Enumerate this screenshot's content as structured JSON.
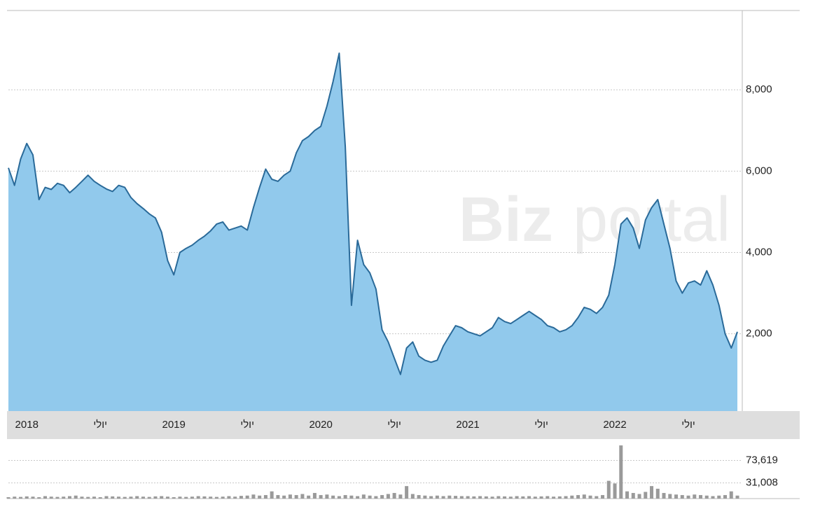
{
  "watermark": {
    "bold": "Biz",
    "light": "portal"
  },
  "chart_data": [
    {
      "type": "area",
      "categories": [
        null,
        null,
        null,
        "2018",
        null,
        null,
        null,
        null,
        null,
        null,
        null,
        null,
        null,
        null,
        null,
        "יולי",
        null,
        null,
        null,
        null,
        null,
        null,
        null,
        null,
        null,
        null,
        null,
        "2019",
        null,
        null,
        null,
        null,
        null,
        null,
        null,
        null,
        null,
        null,
        null,
        "יולי",
        null,
        null,
        null,
        null,
        null,
        null,
        null,
        null,
        null,
        null,
        null,
        "2020",
        null,
        null,
        null,
        null,
        null,
        null,
        null,
        null,
        null,
        null,
        null,
        "יולי",
        null,
        null,
        null,
        null,
        null,
        null,
        null,
        null,
        null,
        null,
        null,
        "2021",
        null,
        null,
        null,
        null,
        null,
        null,
        null,
        null,
        null,
        null,
        null,
        "יולי",
        null,
        null,
        null,
        null,
        null,
        null,
        null,
        null,
        null,
        null,
        null,
        "2022",
        null,
        null,
        null,
        null,
        null,
        null,
        null,
        null,
        null,
        null,
        null,
        "יולי",
        null,
        null,
        null,
        null,
        null,
        null,
        null,
        null
      ],
      "series": [
        {
          "color": "#2a6a99",
          "fill": "#91c9ec",
          "values": [
            6080,
            5650,
            6300,
            6680,
            6400,
            5300,
            5600,
            5550,
            5700,
            5650,
            5470,
            5600,
            5750,
            5900,
            5750,
            5650,
            5560,
            5500,
            5650,
            5600,
            5350,
            5200,
            5080,
            4950,
            4850,
            4500,
            3800,
            3450,
            4000,
            4100,
            4180,
            4300,
            4400,
            4530,
            4700,
            4750,
            4550,
            4600,
            4650,
            4550,
            5100,
            5600,
            6050,
            5800,
            5750,
            5900,
            6000,
            6450,
            6750,
            6850,
            7000,
            7100,
            7600,
            8200,
            8900,
            6600,
            2700,
            4300,
            3700,
            3500,
            3100,
            2100,
            1800,
            1400,
            1000,
            1650,
            1800,
            1450,
            1350,
            1300,
            1350,
            1700,
            1950,
            2200,
            2150,
            2050,
            2000,
            1950,
            2050,
            2150,
            2400,
            2300,
            2250,
            2350,
            2450,
            2550,
            2450,
            2350,
            2200,
            2150,
            2050,
            2100,
            2200,
            2400,
            2650,
            2600,
            2500,
            2650,
            2950,
            3700,
            4700,
            4850,
            4600,
            4100,
            4800,
            5100,
            5300,
            4700,
            4100,
            3300,
            3000,
            3250,
            3300,
            3200,
            3550,
            3200,
            2700,
            2000,
            1650,
            2050
          ]
        }
      ],
      "ylim": [
        100,
        9950
      ],
      "yticks": [
        {
          "value": 2000,
          "label": "2,000"
        },
        {
          "value": 4000,
          "label": "4,000"
        },
        {
          "value": 6000,
          "label": "6,000"
        },
        {
          "value": 8000,
          "label": "8,000"
        }
      ],
      "grid": true
    },
    {
      "type": "bar",
      "series": [
        {
          "color": "#9a9a9a",
          "values": [
            4000,
            5000,
            4500,
            5500,
            5000,
            4000,
            6000,
            5000,
            4500,
            5000,
            6000,
            7000,
            5000,
            4500,
            5000,
            4000,
            6000,
            5500,
            5000,
            4500,
            5000,
            6000,
            5000,
            4500,
            5500,
            6000,
            5000,
            4000,
            5000,
            4500,
            5000,
            6000,
            5500,
            5000,
            4500,
            5000,
            6000,
            5000,
            6500,
            7000,
            9000,
            7000,
            8000,
            15000,
            8000,
            7000,
            9000,
            8000,
            10000,
            7000,
            12000,
            8000,
            9000,
            7000,
            6000,
            8000,
            7000,
            6000,
            9000,
            7000,
            6000,
            8000,
            10000,
            12000,
            9000,
            25000,
            10000,
            8000,
            7000,
            6000,
            7000,
            6000,
            7000,
            6500,
            6000,
            6000,
            5500,
            6000,
            5500,
            5000,
            6000,
            5500,
            5000,
            6000,
            5500,
            6000,
            5000,
            5500,
            6000,
            5000,
            5500,
            6000,
            7000,
            8000,
            9000,
            7000,
            6000,
            8000,
            35000,
            30000,
            102000,
            15000,
            12000,
            10000,
            14000,
            25000,
            20000,
            12000,
            10000,
            9000,
            8000,
            7000,
            9000,
            8000,
            7000,
            6000,
            7000,
            8000,
            15000,
            7000
          ]
        }
      ],
      "ylim": [
        0,
        110000
      ],
      "yticks": [
        {
          "value": 31008,
          "label": "31,008"
        },
        {
          "value": 73619,
          "label": "73,619"
        }
      ],
      "grid": true
    }
  ]
}
